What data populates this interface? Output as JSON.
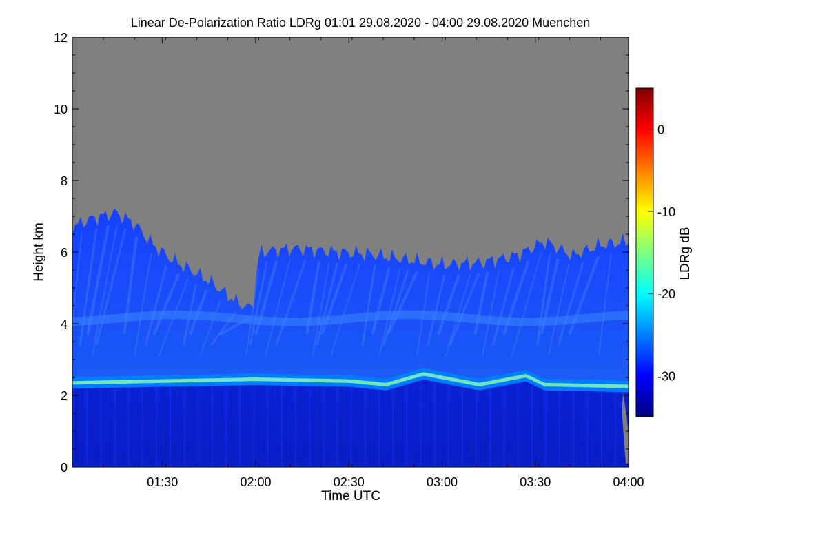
{
  "chart_data": {
    "type": "heatmap",
    "title": "Linear De-Polarization Ratio LDRg   01:01 29.08.2020 - 04:00 29.08.2020 Muenchen",
    "xlabel": "Time UTC",
    "ylabel": "Height km",
    "x_range": [
      "01:01",
      "04:00"
    ],
    "x_ticks": [
      "01:30",
      "02:00",
      "02:30",
      "03:00",
      "03:30",
      "04:00"
    ],
    "ylim": [
      0,
      12
    ],
    "y_ticks": [
      "0",
      "2",
      "4",
      "6",
      "8",
      "10",
      "12"
    ],
    "colorbar": {
      "label": "LDRg dB",
      "range": [
        -35,
        5
      ],
      "ticks": [
        "-30",
        "-20",
        "-10",
        "0"
      ],
      "colormap": [
        "#00007f",
        "#0000ff",
        "#007fff",
        "#00ffff",
        "#7fff7f",
        "#ffff00",
        "#ff7f00",
        "#ff0000",
        "#7f0000"
      ]
    },
    "no_signal_color": "#808080",
    "features": {
      "boundary_layer_dB": -32,
      "aerosol_layer_top_km": [
        [
          1.02,
          2.35
        ],
        [
          1.5,
          2.4
        ],
        [
          2.0,
          2.45
        ],
        [
          2.5,
          2.4
        ],
        [
          2.7,
          2.3
        ],
        [
          2.9,
          2.6
        ],
        [
          3.2,
          2.3
        ],
        [
          3.45,
          2.55
        ],
        [
          3.55,
          2.3
        ],
        [
          4.0,
          2.25
        ]
      ],
      "aerosol_layer_dB": -24,
      "cloud_top_km": [
        [
          1.02,
          6.7
        ],
        [
          1.1,
          6.9
        ],
        [
          1.25,
          7.1
        ],
        [
          1.35,
          6.8
        ],
        [
          1.45,
          6.2
        ],
        [
          1.55,
          5.8
        ],
        [
          1.75,
          5.2
        ],
        [
          1.9,
          4.6
        ],
        [
          1.98,
          4.4
        ],
        [
          2.02,
          6.0
        ],
        [
          2.2,
          6.1
        ],
        [
          2.45,
          6.0
        ],
        [
          2.6,
          5.95
        ],
        [
          2.8,
          5.8
        ],
        [
          3.0,
          5.65
        ],
        [
          3.2,
          5.7
        ],
        [
          3.4,
          5.9
        ],
        [
          3.55,
          6.3
        ],
        [
          3.7,
          5.9
        ],
        [
          3.85,
          6.2
        ],
        [
          4.0,
          6.3
        ]
      ],
      "cloud_dB": -29
    }
  }
}
